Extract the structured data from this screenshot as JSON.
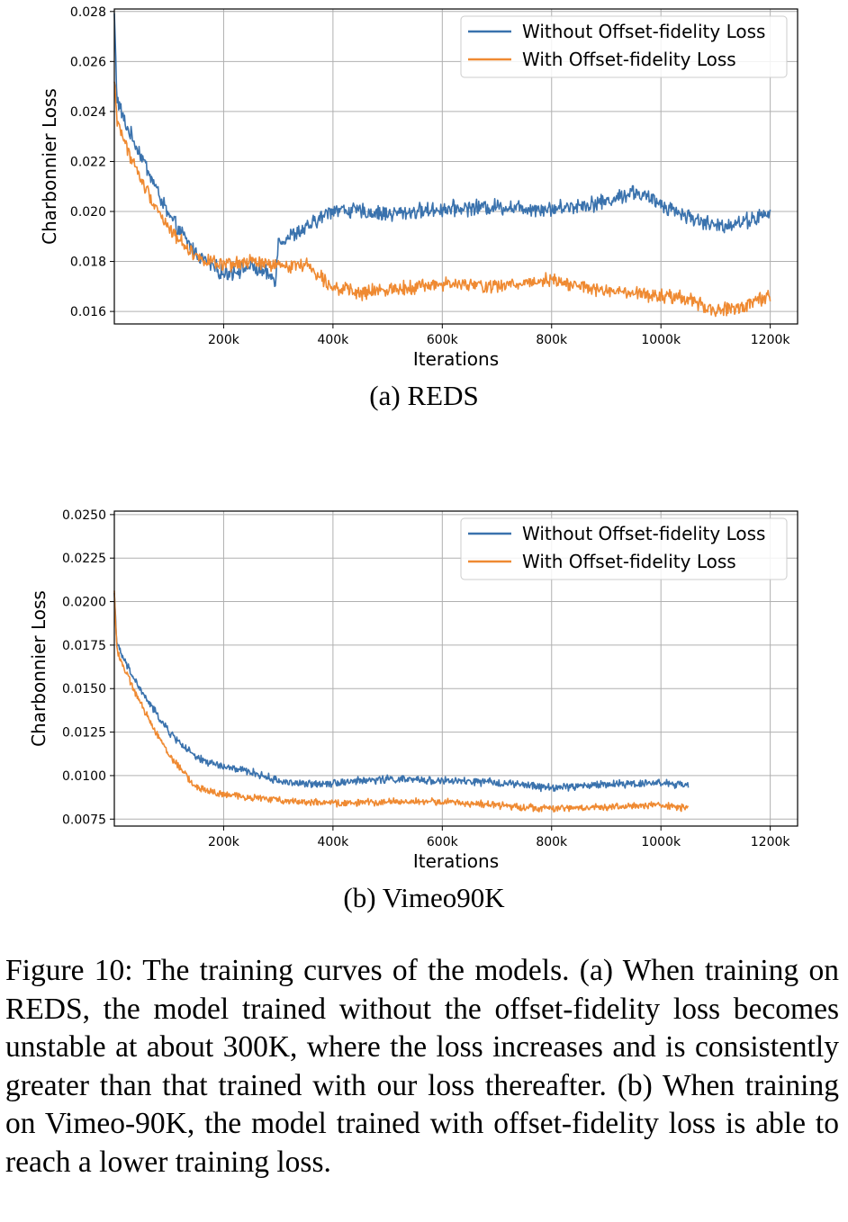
{
  "colors": {
    "without": "#3a72ad",
    "with": "#ef8a32",
    "grid": "#b0b0b0"
  },
  "chart_data": [
    {
      "id": "a",
      "type": "line",
      "title": "(a) REDS",
      "xlabel": "Iterations",
      "ylabel": "Charbonnier Loss",
      "xlim": [
        0,
        1250000
      ],
      "ylim": [
        0.0155,
        0.0281
      ],
      "x_ticks": [
        200000,
        400000,
        600000,
        800000,
        1000000,
        1200000
      ],
      "x_tick_labels": [
        "200k",
        "400k",
        "600k",
        "800k",
        "1000k",
        "1200k"
      ],
      "y_ticks": [
        0.016,
        0.018,
        0.02,
        0.022,
        0.024,
        0.026,
        0.028
      ],
      "y_tick_labels": [
        "0.016",
        "0.018",
        "0.020",
        "0.022",
        "0.024",
        "0.026",
        "0.028"
      ],
      "grid": true,
      "legend_position": "top-right",
      "series": [
        {
          "name": "Without Offset-fidelity Loss",
          "color_key": "without",
          "noise": 0.00025,
          "x": [
            0,
            5000,
            20000,
            50000,
            100000,
            150000,
            200000,
            250000,
            295000,
            300000,
            350000,
            400000,
            500000,
            600000,
            700000,
            800000,
            900000,
            950000,
            1000000,
            1050000,
            1100000,
            1150000,
            1200000
          ],
          "y": [
            0.0279,
            0.0245,
            0.0235,
            0.0222,
            0.0198,
            0.0183,
            0.0175,
            0.0178,
            0.0173,
            0.0188,
            0.0193,
            0.0201,
            0.0199,
            0.0201,
            0.0202,
            0.0201,
            0.0204,
            0.0208,
            0.0203,
            0.0198,
            0.0194,
            0.0196,
            0.0199
          ]
        },
        {
          "name": "With Offset-fidelity Loss",
          "color_key": "with",
          "noise": 0.00022,
          "x": [
            0,
            5000,
            20000,
            50000,
            100000,
            150000,
            200000,
            250000,
            300000,
            350000,
            400000,
            450000,
            500000,
            600000,
            700000,
            800000,
            850000,
            900000,
            1000000,
            1050000,
            1100000,
            1150000,
            1200000
          ],
          "y": [
            0.0252,
            0.0237,
            0.0227,
            0.0212,
            0.0193,
            0.0182,
            0.0178,
            0.018,
            0.0178,
            0.0179,
            0.017,
            0.0167,
            0.0169,
            0.0171,
            0.017,
            0.0173,
            0.017,
            0.0168,
            0.0166,
            0.0165,
            0.016,
            0.0162,
            0.0166
          ]
        }
      ]
    },
    {
      "id": "b",
      "type": "line",
      "title": "(b) Vimeo90K",
      "xlabel": "Iterations",
      "ylabel": "Charbonnier Loss",
      "xlim": [
        0,
        1250000
      ],
      "ylim": [
        0.0071,
        0.0252
      ],
      "x_ticks": [
        200000,
        400000,
        600000,
        800000,
        1000000,
        1200000
      ],
      "x_tick_labels": [
        "200k",
        "400k",
        "600k",
        "800k",
        "1000k",
        "1200k"
      ],
      "y_ticks": [
        0.0075,
        0.01,
        0.0125,
        0.015,
        0.0175,
        0.02,
        0.0225,
        0.025
      ],
      "y_tick_labels": [
        "0.0075",
        "0.0100",
        "0.0125",
        "0.0150",
        "0.0175",
        "0.0200",
        "0.0225",
        "0.0250"
      ],
      "grid": true,
      "legend_position": "top-right",
      "series": [
        {
          "name": "Without Offset-fidelity Loss",
          "color_key": "without",
          "noise": 0.00018,
          "x": [
            0,
            5000,
            20000,
            50000,
            100000,
            150000,
            200000,
            250000,
            300000,
            350000,
            400000,
            500000,
            600000,
            700000,
            800000,
            900000,
            1000000,
            1050000
          ],
          "y": [
            0.0205,
            0.0175,
            0.0165,
            0.0148,
            0.0125,
            0.011,
            0.0105,
            0.0102,
            0.0097,
            0.0095,
            0.0096,
            0.0098,
            0.0097,
            0.0096,
            0.0093,
            0.0095,
            0.0096,
            0.0094
          ]
        },
        {
          "name": "With Offset-fidelity Loss",
          "color_key": "with",
          "noise": 0.00016,
          "x": [
            0,
            5000,
            20000,
            50000,
            100000,
            150000,
            200000,
            300000,
            400000,
            500000,
            600000,
            700000,
            800000,
            900000,
            1000000,
            1050000
          ],
          "y": [
            0.0205,
            0.0172,
            0.016,
            0.014,
            0.0112,
            0.0093,
            0.0089,
            0.0086,
            0.0084,
            0.0085,
            0.0085,
            0.0083,
            0.0081,
            0.0082,
            0.0083,
            0.0081
          ]
        }
      ]
    }
  ],
  "figure_caption": "Figure 10: The training curves of the models. (a) When training on REDS, the model trained without the offset-fidelity loss becomes unstable at about 300K, where the loss increases and is consistently greater than that trained with our loss thereafter. (b) When training on Vimeo-90K, the model trained with offset-fidelity loss is able to reach a lower training loss."
}
